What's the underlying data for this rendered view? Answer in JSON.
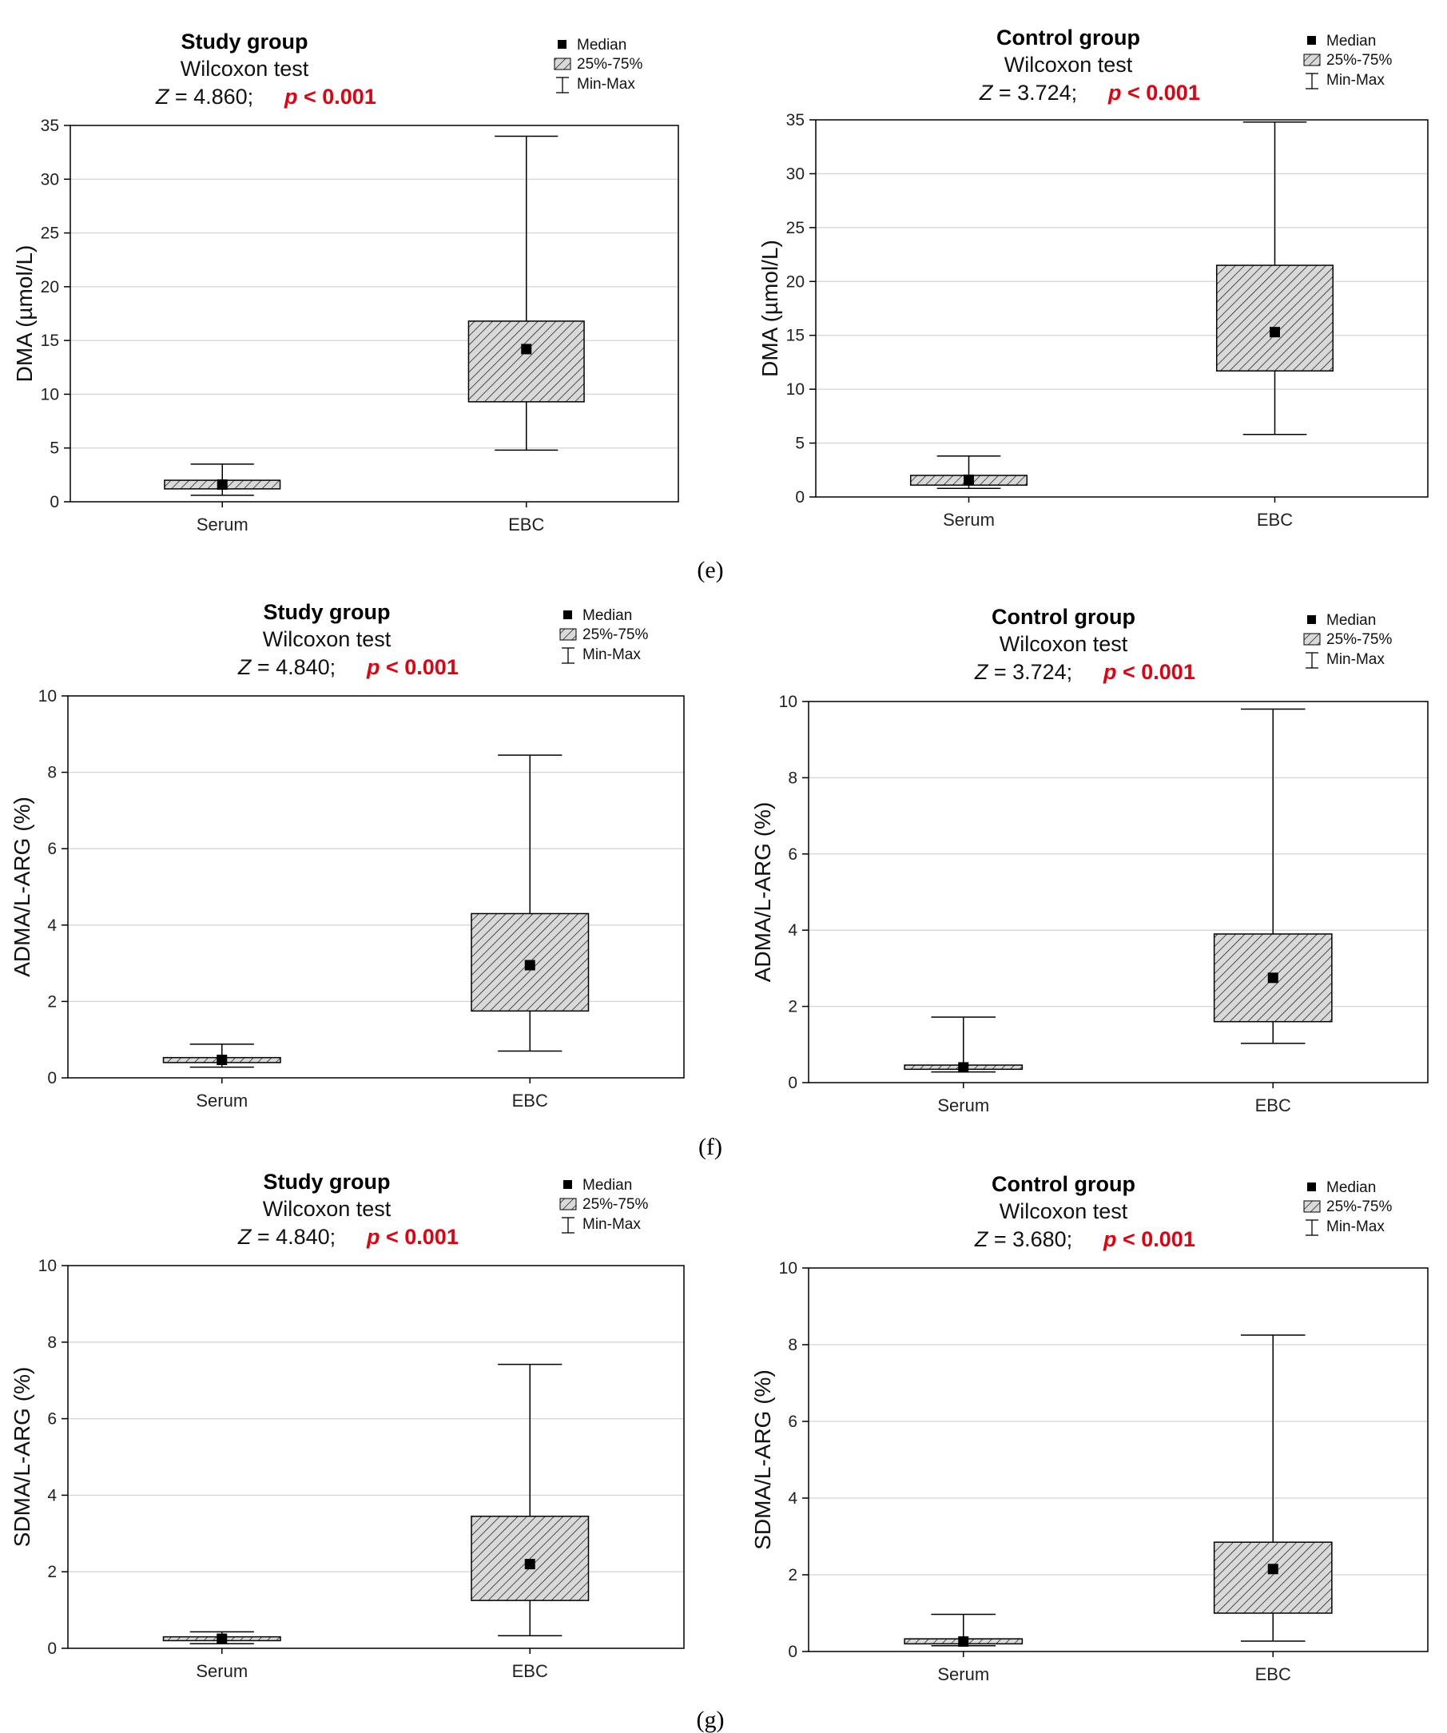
{
  "panel_labels": [
    "(e)",
    "(f)",
    "(g)"
  ],
  "legend": {
    "median": "Median",
    "iqr": "25%-75%",
    "range": "Min-Max"
  },
  "colors": {
    "significant": "#e3000f",
    "box_fill": "#d9d9d9",
    "grid": "#d4d4d4"
  },
  "chart_data": [
    {
      "id": "e-study",
      "type": "boxplot",
      "title": "Study group",
      "subtitle": "Wilcoxon test",
      "stat_prefix": "Z",
      "stat_value": " = 4.860;",
      "p_text": "p < 0.001",
      "ylabel": "DMA (µmol/L)",
      "ylim": [
        0,
        35
      ],
      "yticks": [
        "0",
        "5",
        "10",
        "15",
        "20",
        "25",
        "30",
        "35"
      ],
      "categories": [
        "Serum",
        "EBC"
      ],
      "boxes": [
        {
          "min": 0.6,
          "q1": 1.2,
          "median": 1.6,
          "q3": 2.0,
          "max": 3.5
        },
        {
          "min": 4.8,
          "q1": 9.3,
          "median": 14.2,
          "q3": 16.8,
          "max": 34.0
        }
      ]
    },
    {
      "id": "e-control",
      "type": "boxplot",
      "title": "Control group",
      "subtitle": "Wilcoxon test",
      "stat_prefix": "Z",
      "stat_value": " = 3.724;",
      "p_text": "p < 0.001",
      "ylabel": "DMA (µmol/L)",
      "ylim": [
        0,
        35
      ],
      "yticks": [
        "0",
        "5",
        "10",
        "15",
        "20",
        "25",
        "30",
        "35"
      ],
      "categories": [
        "Serum",
        "EBC"
      ],
      "boxes": [
        {
          "min": 0.8,
          "q1": 1.1,
          "median": 1.6,
          "q3": 2.0,
          "max": 3.8
        },
        {
          "min": 5.8,
          "q1": 11.7,
          "median": 15.3,
          "q3": 21.5,
          "max": 34.8
        }
      ]
    },
    {
      "id": "f-study",
      "type": "boxplot",
      "title": "Study group",
      "subtitle": "Wilcoxon test",
      "stat_prefix": "Z",
      "stat_value": " = 4.840;",
      "p_text": "p < 0.001",
      "ylabel": "ADMA/L-ARG (%)",
      "ylim": [
        0,
        10
      ],
      "yticks": [
        "0",
        "2",
        "4",
        "6",
        "8",
        "10"
      ],
      "categories": [
        "Serum",
        "EBC"
      ],
      "boxes": [
        {
          "min": 0.28,
          "q1": 0.4,
          "median": 0.47,
          "q3": 0.53,
          "max": 0.88
        },
        {
          "min": 0.7,
          "q1": 1.75,
          "median": 2.95,
          "q3": 4.3,
          "max": 8.45
        }
      ]
    },
    {
      "id": "f-control",
      "type": "boxplot",
      "title": "Control group",
      "subtitle": "Wilcoxon test",
      "stat_prefix": "Z",
      "stat_value": " = 3.724;",
      "p_text": "p < 0.001",
      "ylabel": "ADMA/L-ARG (%)",
      "ylim": [
        0,
        10
      ],
      "yticks": [
        "0",
        "2",
        "4",
        "6",
        "8",
        "10"
      ],
      "categories": [
        "Serum",
        "EBC"
      ],
      "boxes": [
        {
          "min": 0.28,
          "q1": 0.35,
          "median": 0.4,
          "q3": 0.46,
          "max": 1.72
        },
        {
          "min": 1.03,
          "q1": 1.6,
          "median": 2.75,
          "q3": 3.9,
          "max": 9.8
        }
      ]
    },
    {
      "id": "g-study",
      "type": "boxplot",
      "title": "Study group",
      "subtitle": "Wilcoxon test",
      "stat_prefix": "Z",
      "stat_value": " = 4.840;",
      "p_text": "p < 0.001",
      "ylabel": "SDMA/L-ARG (%)",
      "ylim": [
        0,
        10
      ],
      "yticks": [
        "0",
        "2",
        "4",
        "6",
        "8",
        "10"
      ],
      "categories": [
        "Serum",
        "EBC"
      ],
      "boxes": [
        {
          "min": 0.12,
          "q1": 0.2,
          "median": 0.25,
          "q3": 0.3,
          "max": 0.43
        },
        {
          "min": 0.33,
          "q1": 1.25,
          "median": 2.2,
          "q3": 3.45,
          "max": 7.42
        }
      ]
    },
    {
      "id": "g-control",
      "type": "boxplot",
      "title": "Control group",
      "subtitle": "Wilcoxon test",
      "stat_prefix": "Z",
      "stat_value": " = 3.680;",
      "p_text": "p < 0.001",
      "ylabel": "SDMA/L-ARG (%)",
      "ylim": [
        0,
        10
      ],
      "yticks": [
        "0",
        "2",
        "4",
        "6",
        "8",
        "10"
      ],
      "categories": [
        "Serum",
        "EBC"
      ],
      "boxes": [
        {
          "min": 0.15,
          "q1": 0.2,
          "median": 0.26,
          "q3": 0.33,
          "max": 0.97
        },
        {
          "min": 0.27,
          "q1": 1.0,
          "median": 2.15,
          "q3": 2.85,
          "max": 8.25
        }
      ]
    }
  ]
}
